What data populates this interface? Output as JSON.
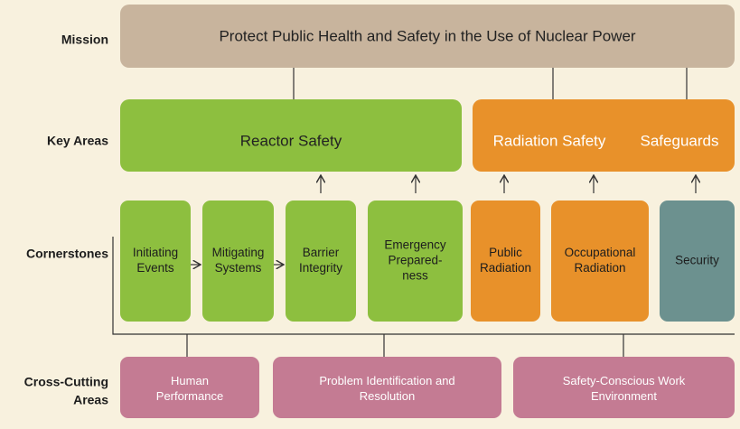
{
  "labels": {
    "mission": "Mission",
    "key_areas": "Key Areas",
    "cornerstones": "Cornerstones",
    "cross_cutting": [
      "Cross-Cutting",
      "Areas"
    ]
  },
  "mission": "Protect Public Health and Safety in the Use of Nuclear Power",
  "key_areas": [
    "Reactor Safety",
    "Radiation Safety",
    "Safeguards"
  ],
  "cornerstones": [
    [
      "Initiating",
      "Events"
    ],
    [
      "Mitigating",
      "Systems"
    ],
    [
      "Barrier",
      "Integrity"
    ],
    [
      "Emergency",
      "Prepared-",
      "ness"
    ],
    [
      "Public",
      "Radiation"
    ],
    [
      "Occupational",
      "Radiation"
    ],
    [
      "Security"
    ]
  ],
  "cross_cutting": [
    [
      "Human",
      "Performance"
    ],
    [
      "Problem Identification and",
      "Resolution"
    ],
    [
      "Safety-Conscious Work",
      "Environment"
    ]
  ]
}
